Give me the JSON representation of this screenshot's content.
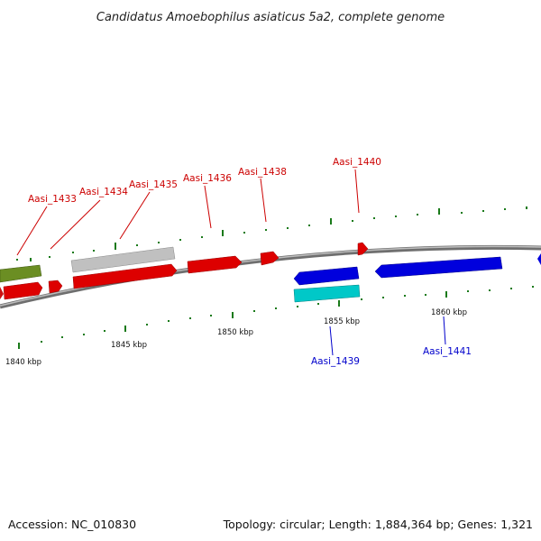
{
  "title": "Candidatus Amoebophilus asiaticus 5a2, complete genome",
  "footer": {
    "accession": "Accession: NC_010830",
    "summary": "Topology: circular; Length: 1,884,364 bp; Genes: 1,321"
  },
  "colors": {
    "forward_label": "#cc0000",
    "reverse_label": "#0000cc",
    "tick": "#1a7a1a",
    "backbone": "#8a8a8a"
  },
  "kbp_labels": [
    "1840 kbp",
    "1845 kbp",
    "1850 kbp",
    "1855 kbp",
    "1860 kbp"
  ],
  "gene_labels": [
    {
      "text": "Aasi_1433",
      "strand": "forward"
    },
    {
      "text": "Aasi_1434",
      "strand": "forward"
    },
    {
      "text": "Aasi_1435",
      "strand": "forward"
    },
    {
      "text": "Aasi_1436",
      "strand": "forward"
    },
    {
      "text": "Aasi_1438",
      "strand": "forward"
    },
    {
      "text": "Aasi_1440",
      "strand": "forward"
    },
    {
      "text": "Aasi_1439",
      "strand": "reverse"
    },
    {
      "text": "Aasi_1441",
      "strand": "reverse"
    }
  ],
  "features": [
    {
      "color": "#cc1111",
      "strand": "forward"
    },
    {
      "color": "#dd0000",
      "strand": "forward"
    },
    {
      "color": "#dd0000",
      "strand": "forward"
    },
    {
      "color": "#dd0000",
      "strand": "forward"
    },
    {
      "color": "#dd0000",
      "strand": "forward"
    },
    {
      "color": "#dd0000",
      "strand": "forward"
    },
    {
      "color": "#dd0000",
      "strand": "forward"
    },
    {
      "color": "#6b8e23",
      "strand": "none"
    },
    {
      "color": "#c0c0c0",
      "strand": "none"
    },
    {
      "color": "#0000dd",
      "strand": "reverse"
    },
    {
      "color": "#0000dd",
      "strand": "reverse"
    },
    {
      "color": "#00c8c8",
      "strand": "none"
    },
    {
      "color": "#0000dd",
      "strand": "reverse"
    }
  ]
}
